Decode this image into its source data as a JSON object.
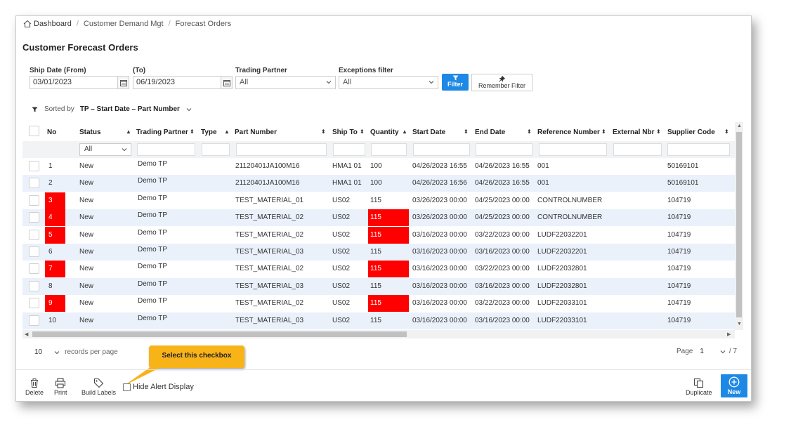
{
  "breadcrumb": {
    "items": [
      "Dashboard",
      "Customer Demand Mgt",
      "Forecast Orders"
    ]
  },
  "page_title": "Customer Forecast Orders",
  "filters": {
    "ship_date_from_label": "Ship Date (From)",
    "ship_date_from": "03/01/2023",
    "ship_date_to_label": "(To)",
    "ship_date_to": "06/19/2023",
    "trading_partner_label": "Trading Partner",
    "trading_partner": "All",
    "exceptions_label": "Exceptions filter",
    "exceptions": "All",
    "filter_button": "Filter",
    "remember_button": "Remember Filter"
  },
  "sort": {
    "label": "Sorted by",
    "value": "TP – Start Date – Part Number"
  },
  "table": {
    "headers": {
      "no": "No",
      "status": "Status",
      "trading_partner": "Trading Partner",
      "type": "Type",
      "part_number": "Part Number",
      "ship_to": "Ship To",
      "quantity": "Quantity",
      "start_date": "Start Date",
      "end_date": "End Date",
      "reference_number": "Reference Number",
      "external_nbr": "External Nbr",
      "supplier_code": "Supplier Code"
    },
    "status_filter": "All",
    "rows": [
      {
        "no": "1",
        "status": "New",
        "tp": "Demo TP",
        "type": "",
        "part": "21120401JA100M16",
        "ship_to": "HMA1 01",
        "qty": "100",
        "start": "04/26/2023 16:55",
        "end": "04/26/2023 16:55",
        "ref": "001",
        "ext": "",
        "supplier": "50169101"
      },
      {
        "no": "2",
        "status": "New",
        "tp": "Demo TP",
        "type": "",
        "part": "21120401JA100M16",
        "ship_to": "HMA1 01",
        "qty": "100",
        "start": "04/26/2023 16:56",
        "end": "04/26/2023 16:55",
        "ref": "001",
        "ext": "",
        "supplier": "50169101"
      },
      {
        "no": "3",
        "status": "New",
        "tp": "Demo TP",
        "type": "",
        "part": "TEST_MATERIAL_01",
        "ship_to": "US02",
        "qty": "115",
        "start": "03/26/2023 00:00",
        "end": "04/25/2023 00:00",
        "ref": "CONTROLNUMBER",
        "ext": "",
        "supplier": "104719"
      },
      {
        "no": "4",
        "status": "New",
        "tp": "Demo TP",
        "type": "",
        "part": "TEST_MATERIAL_02",
        "ship_to": "US02",
        "qty": "115",
        "start": "03/26/2023 00:00",
        "end": "04/25/2023 00:00",
        "ref": "CONTROLNUMBER",
        "ext": "",
        "supplier": "104719"
      },
      {
        "no": "5",
        "status": "New",
        "tp": "Demo TP",
        "type": "",
        "part": "TEST_MATERIAL_02",
        "ship_to": "US02",
        "qty": "115",
        "start": "03/16/2023 00:00",
        "end": "03/22/2023 00:00",
        "ref": "LUDF22032201",
        "ext": "",
        "supplier": "104719"
      },
      {
        "no": "6",
        "status": "New",
        "tp": "Demo TP",
        "type": "",
        "part": "TEST_MATERIAL_03",
        "ship_to": "US02",
        "qty": "115",
        "start": "03/16/2023 00:00",
        "end": "03/16/2023 00:00",
        "ref": "LUDF22032201",
        "ext": "",
        "supplier": "104719"
      },
      {
        "no": "7",
        "status": "New",
        "tp": "Demo TP",
        "type": "",
        "part": "TEST_MATERIAL_02",
        "ship_to": "US02",
        "qty": "115",
        "start": "03/16/2023 00:00",
        "end": "03/22/2023 00:00",
        "ref": "LUDF22032801",
        "ext": "",
        "supplier": "104719"
      },
      {
        "no": "8",
        "status": "New",
        "tp": "Demo TP",
        "type": "",
        "part": "TEST_MATERIAL_03",
        "ship_to": "US02",
        "qty": "115",
        "start": "03/16/2023 00:00",
        "end": "03/16/2023 00:00",
        "ref": "LUDF22032801",
        "ext": "",
        "supplier": "104719"
      },
      {
        "no": "9",
        "status": "New",
        "tp": "Demo TP",
        "type": "",
        "part": "TEST_MATERIAL_02",
        "ship_to": "US02",
        "qty": "115",
        "start": "03/16/2023 00:00",
        "end": "03/22/2023 00:00",
        "ref": "LUDF22033101",
        "ext": "",
        "supplier": "104719"
      },
      {
        "no": "10",
        "status": "New",
        "tp": "Demo TP",
        "type": "",
        "part": "TEST_MATERIAL_03",
        "ship_to": "US02",
        "qty": "115",
        "start": "03/16/2023 00:00",
        "end": "03/16/2023 00:00",
        "ref": "LUDF22033101",
        "ext": "",
        "supplier": "104719"
      }
    ],
    "alert_color": "#ff0000",
    "alt_row_color": "#eaf1fb"
  },
  "pager": {
    "page_size": "10",
    "records_label": "records per page",
    "page_label": "Page",
    "page": "1",
    "total": "/ 7"
  },
  "callout": {
    "text": "Select this checkbox",
    "color": "#f8b319"
  },
  "toolbar": {
    "delete": "Delete",
    "print": "Print",
    "build_labels": "Build Labels",
    "hide_alert": "Hide Alert Display",
    "duplicate": "Duplicate",
    "new": "New"
  },
  "accent_color": "#1e88e5"
}
